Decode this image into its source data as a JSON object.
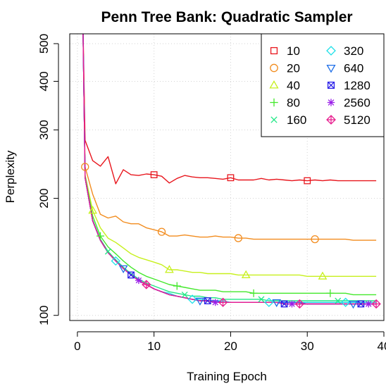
{
  "chart_data": {
    "type": "line",
    "title": "Penn Tree Bank: Quadratic Sampler",
    "xlabel": "Training Epoch",
    "ylabel": "Perplexity",
    "x_scale": "linear",
    "y_scale": "log",
    "xlim": [
      -1,
      40
    ],
    "ylim": [
      97,
      530
    ],
    "x_ticks": [
      0,
      10,
      20,
      30,
      40
    ],
    "x_tick_labels": [
      "0",
      "10",
      "20",
      "30",
      "40"
    ],
    "y_ticks": [
      100,
      200,
      300,
      400,
      500
    ],
    "y_tick_labels": [
      "100",
      "200",
      "300",
      "400",
      "500"
    ],
    "grid": true,
    "legend_position": "top-right",
    "legend_columns": 2,
    "series": [
      {
        "name": "10",
        "color": "#e8161d",
        "marker": "square",
        "marker_epochs": [
          10,
          20,
          30
        ],
        "x": [
          0.7,
          1,
          2,
          3,
          4,
          5,
          6,
          7,
          8,
          9,
          10,
          11,
          12,
          13,
          14,
          15,
          16,
          17,
          18,
          19,
          20,
          21,
          22,
          23,
          24,
          25,
          26,
          27,
          28,
          29,
          30,
          31,
          32,
          33,
          34,
          35,
          36,
          37,
          38,
          39
        ],
        "y": [
          600,
          282,
          250,
          242,
          256,
          218,
          237,
          230,
          229,
          231,
          230,
          228,
          219,
          225,
          229,
          227,
          226,
          226,
          225,
          224,
          226,
          223,
          223,
          223,
          225,
          223,
          224,
          223,
          222,
          223,
          222,
          223,
          222,
          223,
          222,
          222,
          222,
          222,
          222,
          222
        ]
      },
      {
        "name": "20",
        "color": "#f28c1e",
        "marker": "circle",
        "marker_epochs": [
          1,
          11,
          21,
          31
        ],
        "x": [
          0.7,
          1,
          2,
          3,
          4,
          5,
          6,
          7,
          8,
          9,
          10,
          11,
          12,
          13,
          14,
          15,
          16,
          17,
          18,
          19,
          20,
          21,
          22,
          23,
          24,
          25,
          26,
          27,
          28,
          29,
          30,
          31,
          32,
          33,
          34,
          35,
          36,
          37,
          38,
          39
        ],
        "y": [
          600,
          241,
          205,
          182,
          178,
          180,
          174,
          172,
          172,
          168,
          166,
          164,
          160,
          160,
          161,
          160,
          159,
          159,
          160,
          159,
          159,
          158,
          158,
          157,
          157,
          157,
          157,
          157,
          157,
          157,
          157,
          157,
          157,
          157,
          157,
          157,
          156,
          156,
          156,
          156
        ]
      },
      {
        "name": "40",
        "color": "#c7f01d",
        "marker": "triangle-up",
        "marker_epochs": [
          2,
          12,
          22,
          32
        ],
        "x": [
          0.7,
          1,
          2,
          3,
          4,
          5,
          6,
          7,
          8,
          9,
          10,
          11,
          12,
          13,
          14,
          15,
          16,
          17,
          18,
          19,
          20,
          21,
          22,
          23,
          24,
          25,
          26,
          27,
          28,
          29,
          30,
          31,
          32,
          33,
          34,
          35,
          36,
          37,
          38,
          39
        ],
        "y": [
          600,
          230,
          186,
          168,
          158,
          154,
          149,
          144,
          141,
          139,
          137,
          135,
          131,
          131,
          130,
          129,
          129,
          128,
          128,
          128,
          128,
          127,
          127,
          127,
          127,
          127,
          127,
          127,
          127,
          127,
          126,
          126,
          126,
          126,
          126,
          126,
          126,
          126,
          126,
          126
        ]
      },
      {
        "name": "80",
        "color": "#43e82b",
        "marker": "plus",
        "marker_epochs": [
          3,
          13,
          23,
          33
        ],
        "x": [
          0.7,
          1,
          2,
          3,
          4,
          5,
          6,
          7,
          8,
          9,
          10,
          11,
          12,
          13,
          14,
          15,
          16,
          17,
          18,
          19,
          20,
          21,
          22,
          23,
          24,
          25,
          26,
          27,
          28,
          29,
          30,
          31,
          32,
          33,
          34,
          35,
          36,
          37,
          38,
          39
        ],
        "y": [
          600,
          228,
          180,
          160,
          150,
          144,
          138,
          133,
          129,
          126,
          124,
          122,
          120,
          119,
          118,
          117,
          116,
          116,
          116,
          115,
          115,
          115,
          115,
          114,
          114,
          114,
          114,
          114,
          114,
          114,
          114,
          114,
          114,
          114,
          114,
          114,
          113,
          113,
          113,
          113
        ]
      },
      {
        "name": "160",
        "color": "#1fe885",
        "marker": "cross",
        "marker_epochs": [
          4,
          14,
          24,
          34
        ],
        "x": [
          0.7,
          1,
          2,
          3,
          4,
          5,
          6,
          7,
          8,
          9,
          10,
          11,
          12,
          13,
          14,
          15,
          16,
          17,
          18,
          19,
          20,
          21,
          22,
          23,
          24,
          25,
          26,
          27,
          28,
          29,
          30,
          31,
          32,
          33,
          34,
          35,
          36,
          37,
          38,
          39
        ],
        "y": [
          600,
          227,
          176,
          157,
          146,
          139,
          133,
          128,
          124,
          121,
          119,
          117,
          115,
          114,
          113,
          112,
          112,
          111,
          111,
          110,
          110,
          110,
          110,
          110,
          110,
          109,
          109,
          109,
          109,
          109,
          109,
          109,
          109,
          109,
          109,
          109,
          109,
          109,
          109,
          109
        ]
      },
      {
        "name": "320",
        "color": "#1fe0e8",
        "marker": "diamond",
        "marker_epochs": [
          5,
          15,
          25,
          35
        ],
        "x": [
          0.7,
          1,
          2,
          3,
          4,
          5,
          6,
          7,
          8,
          9,
          10,
          11,
          12,
          13,
          14,
          15,
          16,
          17,
          18,
          19,
          20,
          21,
          22,
          23,
          24,
          25,
          26,
          27,
          28,
          29,
          30,
          31,
          32,
          33,
          34,
          35,
          36,
          37,
          38,
          39
        ],
        "y": [
          600,
          226,
          175,
          156,
          145,
          138,
          132,
          127,
          123,
          120,
          117,
          115,
          114,
          112,
          111,
          110,
          110,
          109,
          109,
          109,
          108,
          108,
          108,
          108,
          108,
          108,
          108,
          108,
          108,
          108,
          108,
          108,
          108,
          108,
          108,
          108,
          108,
          108,
          108,
          108
        ]
      },
      {
        "name": "640",
        "color": "#1f6fe8",
        "marker": "triangle-down",
        "marker_epochs": [
          6,
          16,
          26,
          36
        ],
        "x": [
          0.7,
          1,
          2,
          3,
          4,
          5,
          6,
          7,
          8,
          9,
          10,
          11,
          12,
          13,
          14,
          15,
          16,
          17,
          18,
          19,
          20,
          21,
          22,
          23,
          24,
          25,
          26,
          27,
          28,
          29,
          30,
          31,
          32,
          33,
          34,
          35,
          36,
          37,
          38,
          39
        ],
        "y": [
          600,
          226,
          175,
          156,
          145,
          138,
          132,
          127,
          123,
          120,
          117,
          115,
          113,
          112,
          111,
          110,
          109,
          109,
          109,
          108,
          108,
          108,
          108,
          108,
          108,
          108,
          108,
          108,
          108,
          108,
          107,
          107,
          107,
          107,
          107,
          107,
          107,
          107,
          107,
          107
        ]
      },
      {
        "name": "1280",
        "color": "#2a1fe8",
        "marker": "square-x",
        "marker_epochs": [
          7,
          17,
          27,
          37
        ],
        "x": [
          0.7,
          1,
          2,
          3,
          4,
          5,
          6,
          7,
          8,
          9,
          10,
          11,
          12,
          13,
          14,
          15,
          16,
          17,
          18,
          19,
          20,
          21,
          22,
          23,
          24,
          25,
          26,
          27,
          28,
          29,
          30,
          31,
          32,
          33,
          34,
          35,
          36,
          37,
          38,
          39
        ],
        "y": [
          600,
          226,
          175,
          156,
          145,
          138,
          132,
          127,
          123,
          120,
          117,
          115,
          113,
          112,
          111,
          110,
          109,
          109,
          108,
          108,
          108,
          108,
          108,
          108,
          108,
          108,
          108,
          107,
          107,
          107,
          107,
          107,
          107,
          107,
          107,
          107,
          107,
          107,
          107,
          107
        ]
      },
      {
        "name": "2560",
        "color": "#9a1fe8",
        "marker": "asterisk",
        "marker_epochs": [
          8,
          18,
          28,
          38
        ],
        "x": [
          0.7,
          1,
          2,
          3,
          4,
          5,
          6,
          7,
          8,
          9,
          10,
          11,
          12,
          13,
          14,
          15,
          16,
          17,
          18,
          19,
          20,
          21,
          22,
          23,
          24,
          25,
          26,
          27,
          28,
          29,
          30,
          31,
          32,
          33,
          34,
          35,
          36,
          37,
          38,
          39
        ],
        "y": [
          600,
          226,
          175,
          156,
          145,
          138,
          132,
          127,
          123,
          120,
          117,
          115,
          113,
          112,
          111,
          110,
          109,
          109,
          108,
          108,
          108,
          108,
          108,
          108,
          108,
          108,
          108,
          107,
          107,
          107,
          107,
          107,
          107,
          107,
          107,
          107,
          107,
          107,
          107,
          107
        ]
      },
      {
        "name": "5120",
        "color": "#e81f8f",
        "marker": "diamond-plus",
        "marker_epochs": [
          9,
          19,
          29,
          39
        ],
        "x": [
          0.7,
          1,
          2,
          3,
          4,
          5,
          6,
          7,
          8,
          9,
          10,
          11,
          12,
          13,
          14,
          15,
          16,
          17,
          18,
          19,
          20,
          21,
          22,
          23,
          24,
          25,
          26,
          27,
          28,
          29,
          30,
          31,
          32,
          33,
          34,
          35,
          36,
          37,
          38,
          39
        ],
        "y": [
          600,
          226,
          175,
          156,
          145,
          138,
          132,
          127,
          123,
          120,
          117,
          115,
          113,
          112,
          111,
          110,
          109,
          109,
          108,
          108,
          108,
          108,
          108,
          108,
          108,
          108,
          108,
          107,
          107,
          107,
          107,
          107,
          107,
          107,
          107,
          107,
          107,
          107,
          107,
          107
        ]
      }
    ]
  }
}
